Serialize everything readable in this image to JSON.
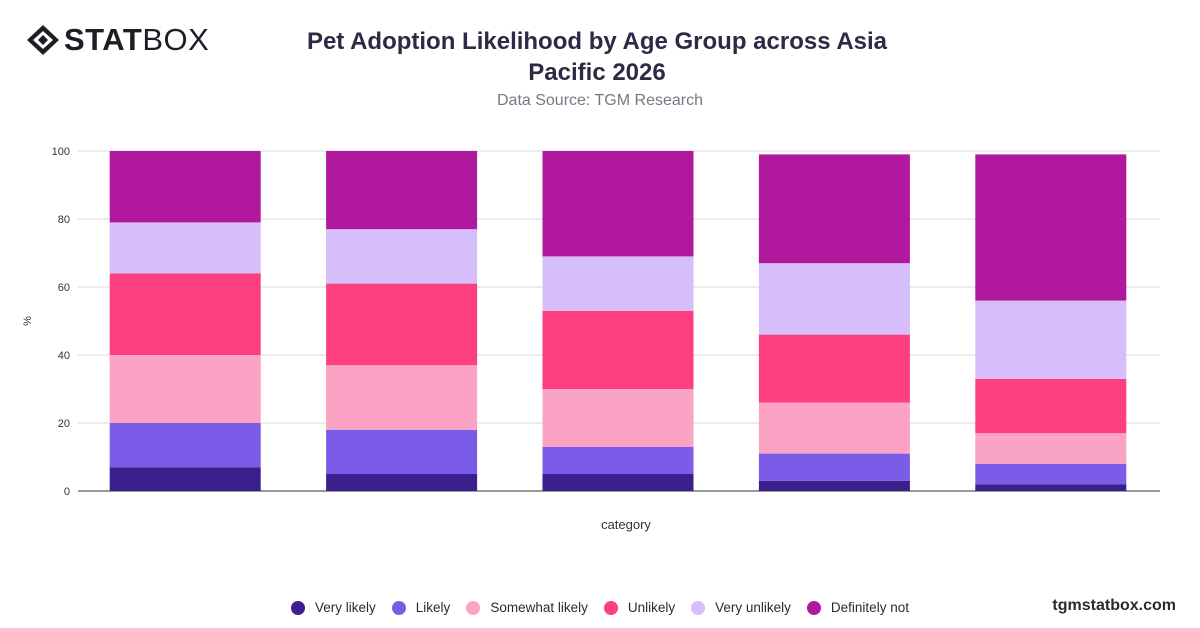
{
  "brand": {
    "name_bold": "STAT",
    "name_light": "BOX",
    "url": "tgmstatbox.com"
  },
  "header": {
    "title_line1": "Pet Adoption Likelihood by Age Group across Asia",
    "title_line2": "Pacific 2026",
    "subtitle": "Data Source: TGM Research"
  },
  "chart_data": {
    "type": "bar",
    "stacked": true,
    "title": "Pet Adoption Likelihood by Age Group across Asia Pacific 2026",
    "subtitle": "Data Source: TGM Research",
    "xlabel": "category",
    "ylabel": "%",
    "ylim": [
      0,
      100
    ],
    "yticks": [
      0,
      20,
      40,
      60,
      80,
      100
    ],
    "grid": true,
    "legend_position": "bottom",
    "categories": [
      "",
      "",
      "",
      "",
      ""
    ],
    "series": [
      {
        "name": "Very likely",
        "color": "#3b1f8c",
        "values": [
          7,
          5,
          5,
          3,
          2
        ]
      },
      {
        "name": "Likely",
        "color": "#7b5ce8",
        "values": [
          13,
          13,
          8,
          8,
          6
        ]
      },
      {
        "name": "Somewhat likely",
        "color": "#fba3c4",
        "values": [
          20,
          19,
          17,
          15,
          9
        ]
      },
      {
        "name": "Unlikely",
        "color": "#fe3f7f",
        "values": [
          24,
          24,
          23,
          20,
          16
        ]
      },
      {
        "name": "Very unlikely",
        "color": "#d5bef9",
        "values": [
          15,
          16,
          16,
          21,
          23
        ]
      },
      {
        "name": "Definitely not",
        "color": "#b0189e",
        "values": [
          21,
          23,
          31,
          32,
          43
        ]
      }
    ]
  }
}
